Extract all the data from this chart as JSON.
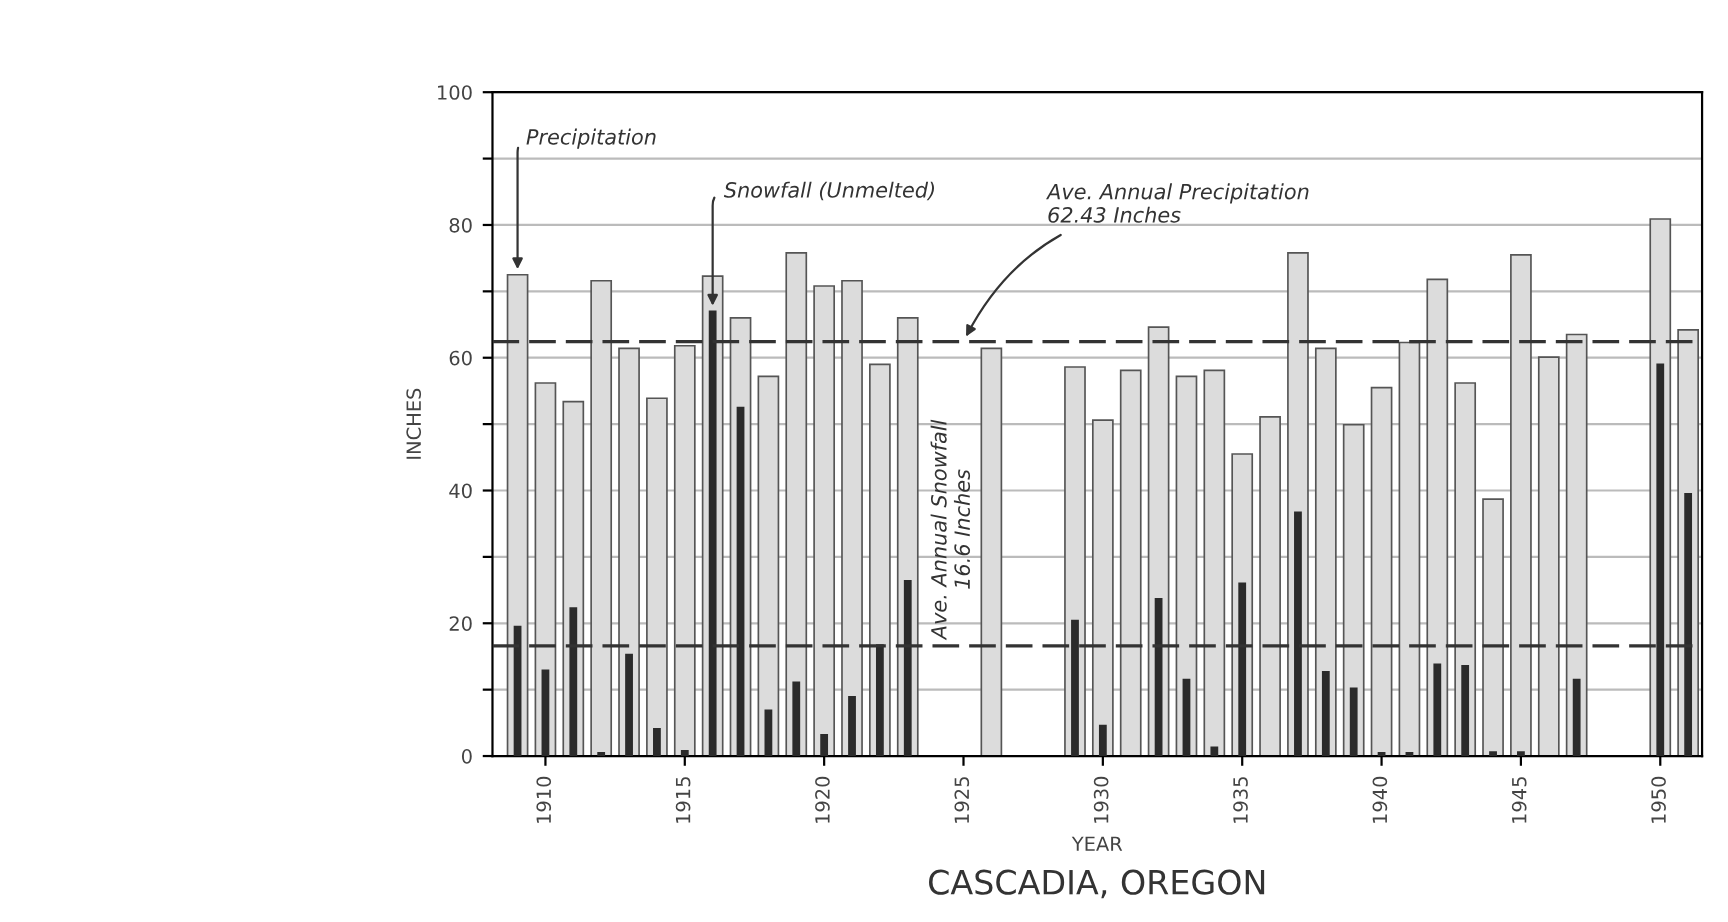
{
  "chart_data": {
    "type": "bar",
    "title": "CASCADIA, OREGON",
    "xlabel": "YEAR",
    "ylabel": "INCHES",
    "x": [
      1909,
      1910,
      1911,
      1912,
      1913,
      1914,
      1915,
      1916,
      1917,
      1918,
      1919,
      1920,
      1921,
      1922,
      1923,
      1924,
      1925,
      1926,
      1927,
      1928,
      1929,
      1930,
      1931,
      1932,
      1933,
      1934,
      1935,
      1936,
      1937,
      1938,
      1939,
      1940,
      1941,
      1942,
      1943,
      1944,
      1945,
      1946,
      1947,
      1948,
      1949,
      1950,
      1951
    ],
    "series": [
      {
        "name": "Precipitation",
        "color": "#dcdcdc",
        "values": [
          72.5,
          56.2,
          53.4,
          71.6,
          61.4,
          53.9,
          61.8,
          72.3,
          66.0,
          57.2,
          75.8,
          70.8,
          71.6,
          59.0,
          66.0,
          null,
          null,
          61.4,
          null,
          null,
          58.6,
          50.6,
          58.1,
          64.6,
          57.2,
          58.1,
          45.5,
          51.1,
          75.8,
          61.4,
          49.9,
          55.5,
          62.3,
          71.8,
          56.2,
          38.7,
          75.5,
          60.1,
          63.5,
          null,
          null,
          80.9,
          64.2
        ]
      },
      {
        "name": "Snowfall (Unmelted)",
        "color": "#2b2b2b",
        "values": [
          19.5,
          12.9,
          22.3,
          0.5,
          15.3,
          4.1,
          0.8,
          67.0,
          52.5,
          6.9,
          11.1,
          3.2,
          8.9,
          16.7,
          26.4,
          null,
          null,
          null,
          null,
          null,
          20.4,
          4.6,
          null,
          23.7,
          11.5,
          1.3,
          26.0,
          null,
          36.7,
          12.7,
          10.2,
          0.5,
          0.5,
          13.8,
          13.6,
          0.6,
          0.6,
          null,
          11.5,
          null,
          null,
          59.0,
          39.5
        ]
      }
    ],
    "ref_lines": [
      {
        "axis": "y",
        "value": 62.43,
        "label": "Ave. Annual Precipitation\n62.43 Inches",
        "line_style": "dashed",
        "color": "#333333"
      },
      {
        "axis": "y",
        "value": 16.6,
        "label": "Ave. Annual Snowfall\n16.6 Inches",
        "line_style": "dashed",
        "color": "#333333"
      }
    ],
    "xlim": [
      1908.1,
      1951.5
    ],
    "xticks": [
      1910,
      1915,
      1920,
      1925,
      1930,
      1935,
      1940,
      1945,
      1950
    ],
    "ylim": [
      0,
      100
    ],
    "yticks": [
      0,
      {
        "value": 10,
        "label": null
      },
      20,
      {
        "value": 30,
        "label": null
      },
      40,
      {
        "value": 50,
        "label": null
      },
      60,
      {
        "value": 70,
        "label": null
      },
      80,
      {
        "value": 90,
        "label": null
      },
      100
    ],
    "grid": "y"
  }
}
